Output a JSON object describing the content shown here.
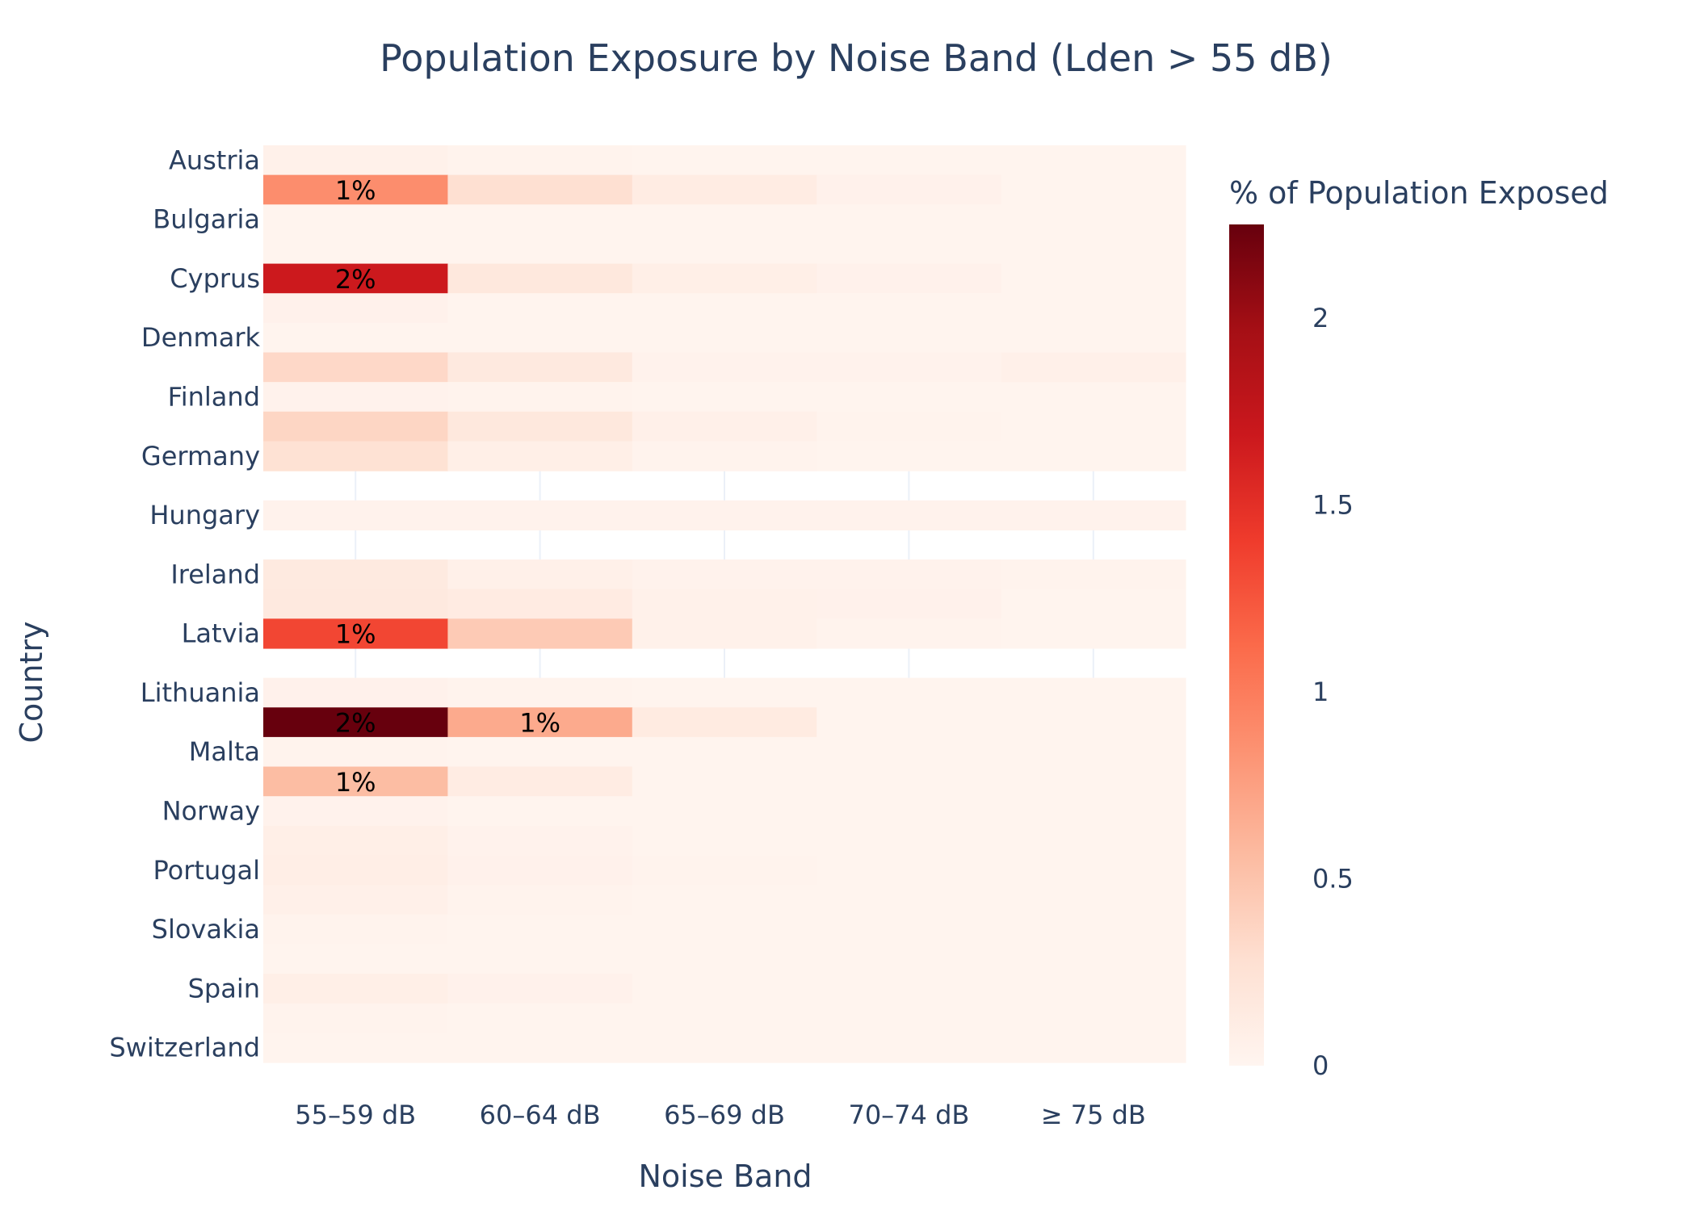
{
  "chart_data": {
    "type": "heatmap",
    "title": "Population Exposure by Noise Band (Lden > 55 dB)",
    "xlabel": "Noise Band",
    "ylabel": "Country",
    "colorbar_title": "% of Population Exposed",
    "colorscale": "Reds",
    "zrange": [
      0,
      2.25
    ],
    "colorbar_ticks": [
      "0",
      "0.5",
      "1",
      "1.5",
      "2"
    ],
    "colorbar_tick_values": [
      0,
      0.5,
      1,
      1.5,
      2
    ],
    "x_categories": [
      "55–59 dB",
      "60–64 dB",
      "65–69 dB",
      "70–74 dB",
      "≥ 75 dB"
    ],
    "y_tick_labels": [
      "Austria",
      "Bulgaria",
      "Cyprus",
      "Denmark",
      "Finland",
      "Germany",
      "Hungary",
      "Ireland",
      "Latvia",
      "Lithuania",
      "Malta",
      "Norway",
      "Portugal",
      "Slovakia",
      "Spain",
      "Switzerland"
    ],
    "rows": [
      {
        "pos": 0,
        "values": [
          0.06,
          0.03,
          0.02,
          0.02,
          0.02
        ],
        "labels": [
          "",
          "",
          "",
          "",
          ""
        ]
      },
      {
        "pos": 1,
        "values": [
          0.88,
          0.28,
          0.12,
          0.05,
          0.02
        ],
        "labels": [
          "1%",
          "",
          "",
          "",
          ""
        ]
      },
      {
        "pos": 2,
        "values": [
          0.02,
          0.02,
          0.02,
          0.02,
          0.02
        ],
        "labels": [
          "",
          "",
          "",
          "",
          ""
        ]
      },
      {
        "pos": 3,
        "values": [
          0.02,
          0.02,
          0.02,
          0.02,
          0.02
        ],
        "labels": [
          "",
          "",
          "",
          "",
          ""
        ]
      },
      {
        "pos": 4,
        "values": [
          1.68,
          0.18,
          0.08,
          0.05,
          0.02
        ],
        "labels": [
          "2%",
          "",
          "",
          "",
          ""
        ]
      },
      {
        "pos": 5,
        "values": [
          0.05,
          0.02,
          0.02,
          0.02,
          0.02
        ],
        "labels": [
          "",
          "",
          "",
          "",
          ""
        ]
      },
      {
        "pos": 6,
        "values": [
          0.02,
          0.02,
          0.02,
          0.02,
          0.02
        ],
        "labels": [
          "",
          "",
          "",
          "",
          ""
        ]
      },
      {
        "pos": 7,
        "values": [
          0.34,
          0.16,
          0.04,
          0.04,
          0.07
        ],
        "labels": [
          "",
          "",
          "",
          "",
          ""
        ]
      },
      {
        "pos": 8,
        "values": [
          0.04,
          0.03,
          0.02,
          0.02,
          0.02
        ],
        "labels": [
          "",
          "",
          "",
          "",
          ""
        ]
      },
      {
        "pos": 9,
        "values": [
          0.36,
          0.18,
          0.07,
          0.03,
          0.02
        ],
        "labels": [
          "",
          "",
          "",
          "",
          ""
        ]
      },
      {
        "pos": 10,
        "values": [
          0.26,
          0.08,
          0.03,
          0.02,
          0.02
        ],
        "labels": [
          "",
          "",
          "",
          "",
          ""
        ]
      },
      {
        "pos": 12,
        "values": [
          0.04,
          0.04,
          0.04,
          0.04,
          0.04
        ],
        "labels": [
          "",
          "",
          "",
          "",
          ""
        ]
      },
      {
        "pos": 14,
        "values": [
          0.15,
          0.07,
          0.04,
          0.04,
          0.03
        ],
        "labels": [
          "",
          "",
          "",
          "",
          ""
        ]
      },
      {
        "pos": 15,
        "values": [
          0.16,
          0.13,
          0.06,
          0.05,
          0.02
        ],
        "labels": [
          "",
          "",
          "",
          "",
          ""
        ]
      },
      {
        "pos": 16,
        "values": [
          1.34,
          0.45,
          0.06,
          0.03,
          0.02
        ],
        "labels": [
          "1%",
          "",
          "",
          "",
          ""
        ]
      },
      {
        "pos": 18,
        "values": [
          0.05,
          0.03,
          0.02,
          0.02,
          0.02
        ],
        "labels": [
          "",
          "",
          "",
          "",
          ""
        ]
      },
      {
        "pos": 19,
        "values": [
          2.25,
          0.68,
          0.14,
          0.02,
          0.02
        ],
        "labels": [
          "2%",
          "1%",
          "",
          "",
          ""
        ]
      },
      {
        "pos": 20,
        "values": [
          0.03,
          0.02,
          0.02,
          0.02,
          0.02
        ],
        "labels": [
          "",
          "",
          "",
          "",
          ""
        ]
      },
      {
        "pos": 21,
        "values": [
          0.55,
          0.12,
          0.02,
          0.02,
          0.02
        ],
        "labels": [
          "1%",
          "",
          "",
          "",
          ""
        ]
      },
      {
        "pos": 22,
        "values": [
          0.04,
          0.02,
          0.02,
          0.02,
          0.02
        ],
        "labels": [
          "",
          "",
          "",
          "",
          ""
        ]
      },
      {
        "pos": 23,
        "values": [
          0.08,
          0.04,
          0.02,
          0.02,
          0.02
        ],
        "labels": [
          "",
          "",
          "",
          "",
          ""
        ]
      },
      {
        "pos": 24,
        "values": [
          0.09,
          0.05,
          0.03,
          0.02,
          0.02
        ],
        "labels": [
          "",
          "",
          "",
          "",
          ""
        ]
      },
      {
        "pos": 25,
        "values": [
          0.07,
          0.03,
          0.02,
          0.02,
          0.02
        ],
        "labels": [
          "",
          "",
          "",
          "",
          ""
        ]
      },
      {
        "pos": 26,
        "values": [
          0.03,
          0.02,
          0.02,
          0.02,
          0.02
        ],
        "labels": [
          "",
          "",
          "",
          "",
          ""
        ]
      },
      {
        "pos": 27,
        "values": [
          0.02,
          0.02,
          0.02,
          0.02,
          0.02
        ],
        "labels": [
          "",
          "",
          "",
          "",
          ""
        ]
      },
      {
        "pos": 28,
        "values": [
          0.08,
          0.05,
          0.02,
          0.02,
          0.02
        ],
        "labels": [
          "",
          "",
          "",
          "",
          ""
        ]
      },
      {
        "pos": 29,
        "values": [
          0.03,
          0.02,
          0.02,
          0.02,
          0.02
        ],
        "labels": [
          "",
          "",
          "",
          "",
          ""
        ]
      },
      {
        "pos": 30,
        "values": [
          0.02,
          0.02,
          0.02,
          0.02,
          0.02
        ],
        "labels": [
          "",
          "",
          "",
          "",
          ""
        ]
      }
    ]
  }
}
